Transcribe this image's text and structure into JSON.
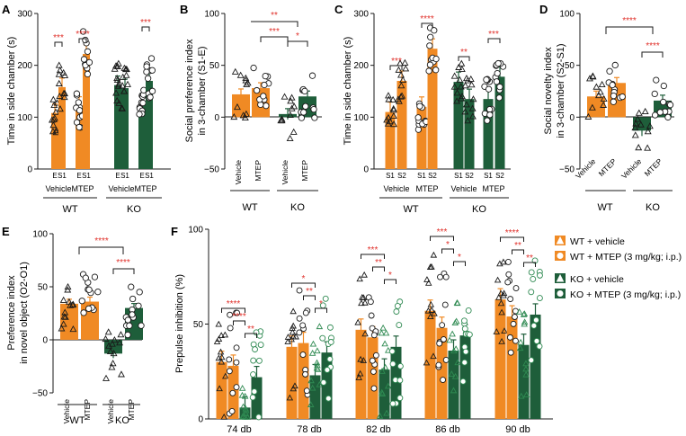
{
  "colors": {
    "orange": "#f08a24",
    "green": "#1e5e3a",
    "red": "#e0302a",
    "black": "#1a1a1a"
  },
  "chart_data": [
    {
      "panel": "A",
      "type": "bar",
      "ylabel": "Time in side chamber (s)",
      "ylim": [
        0,
        300
      ],
      "yticks": [
        "0",
        "100",
        "200",
        "300"
      ],
      "categories": [
        "E",
        "S1",
        "E",
        "S1",
        "E",
        "S1",
        "E",
        "S1"
      ],
      "values": [
        108,
        158,
        122,
        222,
        162,
        156,
        128,
        170
      ],
      "bar_colors": [
        "orange",
        "orange",
        "orange",
        "orange",
        "green",
        "green",
        "green",
        "green"
      ],
      "subgroups": [
        "Vehicle",
        "MTEP",
        "Vehicle",
        "MTEP"
      ],
      "groups": [
        "WT",
        "KO"
      ],
      "significance": [
        "***",
        "****",
        "***"
      ]
    },
    {
      "panel": "B",
      "type": "bar",
      "ylabel": "Social preference index in 3-chamber (S1-E)",
      "ylabel_lines": [
        "Social preference index",
        "in 3-chamber (S1-E)"
      ],
      "ylim": [
        -50,
        100
      ],
      "yticks": [
        "−50",
        "0",
        "50",
        "100"
      ],
      "categories": [
        "Vehicle",
        "MTEP",
        "Vehicle",
        "MTEP"
      ],
      "values": [
        22,
        28,
        3,
        20
      ],
      "bar_colors": [
        "orange",
        "orange",
        "green",
        "green"
      ],
      "groups": [
        "WT",
        "KO"
      ],
      "significance": [
        "**",
        "***",
        "*"
      ]
    },
    {
      "panel": "C",
      "type": "bar",
      "ylabel": "Time in side chamber (s)",
      "ylim": [
        0,
        300
      ],
      "yticks": [
        "0",
        "100",
        "200",
        "300"
      ],
      "categories": [
        "S1",
        "S2",
        "S1",
        "S2",
        "S1",
        "S2",
        "S1",
        "S2"
      ],
      "values": [
        110,
        170,
        120,
        232,
        168,
        135,
        135,
        178
      ],
      "bar_colors": [
        "orange",
        "orange",
        "orange",
        "orange",
        "green",
        "green",
        "green",
        "green"
      ],
      "subgroups": [
        "Vehicle",
        "MTEP",
        "Vehicle",
        "MTEP"
      ],
      "groups": [
        "WT",
        "KO"
      ],
      "significance": [
        "***",
        "****",
        "**",
        "***"
      ]
    },
    {
      "panel": "D",
      "type": "bar",
      "ylabel": "Social novelty index in 3-chamber (S2-S1)",
      "ylabel_lines": [
        "Social novelty index",
        "in 3-chamber (S2-S1)"
      ],
      "ylim": [
        -50,
        100
      ],
      "yticks": [
        "−50",
        "0",
        "50",
        "100"
      ],
      "categories": [
        "Vehicle",
        "MTEP",
        "Vehicle",
        "MTEP"
      ],
      "values": [
        20,
        33,
        -13,
        16
      ],
      "bar_colors": [
        "orange",
        "orange",
        "green",
        "green"
      ],
      "groups": [
        "WT",
        "KO"
      ],
      "significance": [
        "****",
        "****"
      ]
    },
    {
      "panel": "E",
      "type": "bar",
      "ylabel": "Preference index in novel object (O2-O1)",
      "ylabel_lines": [
        "Preference index",
        "in novel object (O2-O1)"
      ],
      "ylim": [
        -50,
        100
      ],
      "yticks": [
        "−50",
        "0",
        "50",
        "100"
      ],
      "categories": [
        "Vehicle",
        "MTEP",
        "Vehicle",
        "MTEP"
      ],
      "values": [
        34,
        36,
        -13,
        30
      ],
      "bar_colors": [
        "orange",
        "orange",
        "green",
        "green"
      ],
      "groups": [
        "WT",
        "KO"
      ],
      "significance": [
        "****",
        "****"
      ]
    },
    {
      "panel": "F",
      "type": "bar",
      "ylabel": "Prepulse inhibition (%)",
      "ylim": [
        0,
        100
      ],
      "yticks": [
        "0",
        "50",
        "100"
      ],
      "categories": [
        "74 db",
        "78 db",
        "82 db",
        "86 db",
        "90 db"
      ],
      "series": [
        {
          "name": "WT + vehicle",
          "values": [
            30,
            38,
            47,
            57,
            63
          ]
        },
        {
          "name": "WT + MTEP (3 mg/kg; i.p.)",
          "values": [
            28,
            40,
            43,
            48,
            54
          ]
        },
        {
          "name": "KO + vehicle",
          "values": [
            6,
            23,
            26,
            36,
            39
          ]
        },
        {
          "name": "KO + MTEP (3 mg/kg; i.p.)",
          "values": [
            22,
            35,
            38,
            44,
            55
          ]
        }
      ],
      "significance": [
        [
          "****",
          "****",
          "**"
        ],
        [
          "*",
          "**",
          "*"
        ],
        [
          "***",
          "**",
          "*"
        ],
        [
          "***",
          "*",
          "*"
        ],
        [
          "****",
          "**",
          "**"
        ]
      ]
    }
  ]
}
